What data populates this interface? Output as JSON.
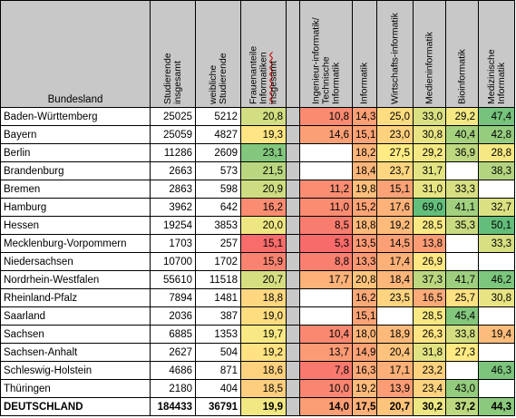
{
  "columns": [
    {
      "label": "Bundesland"
    },
    {
      "label": "Studierende\ninsgesamt"
    },
    {
      "label": "weibliche\nStudierende"
    },
    {
      "label": "Frauenanteile\nInformatiken\ninsgesamt"
    },
    {
      "label": ""
    },
    {
      "label": "Ingenieur-informatik/\nTechnische\nInformatik"
    },
    {
      "label": "Informatik"
    },
    {
      "label": "Wirtschafts-informatik"
    },
    {
      "label": "Medieninformatik"
    },
    {
      "label": "Bioinformatik"
    },
    {
      "label": "Medizinische\nInformatik"
    }
  ],
  "rows": [
    {
      "name": "Baden-Württemberg",
      "total": "25025",
      "female": "5212",
      "share": "20,8",
      "vals": [
        "10,8",
        "14,3",
        "25,0",
        "33,0",
        "29,2",
        "47,4"
      ]
    },
    {
      "name": "Bayern",
      "total": "25059",
      "female": "4827",
      "share": "19,3",
      "vals": [
        "14,6",
        "15,1",
        "23,0",
        "30,8",
        "40,4",
        "42,8"
      ]
    },
    {
      "name": "Berlin",
      "total": "11286",
      "female": "2609",
      "share": "23,1",
      "vals": [
        "",
        "18,2",
        "27,5",
        "29,2",
        "36,9",
        "28,8"
      ]
    },
    {
      "name": "Brandenburg",
      "total": "2663",
      "female": "573",
      "share": "21,5",
      "vals": [
        "",
        "18,4",
        "23,7",
        "31,7",
        "",
        "38,3"
      ]
    },
    {
      "name": "Bremen",
      "total": "2863",
      "female": "598",
      "share": "20,9",
      "vals": [
        "11,2",
        "19,8",
        "15,1",
        "31,0",
        "33,3",
        ""
      ]
    },
    {
      "name": "Hamburg",
      "total": "3962",
      "female": "642",
      "share": "16,2",
      "vals": [
        "11,0",
        "15,2",
        "17,6",
        "69,0",
        "41,1",
        "32,7"
      ]
    },
    {
      "name": "Hessen",
      "total": "19254",
      "female": "3853",
      "share": "20,0",
      "vals": [
        "8,5",
        "18,8",
        "19,2",
        "28,5",
        "35,3",
        "50,1"
      ]
    },
    {
      "name": "Mecklenburg-Vorpommern",
      "total": "1703",
      "female": "257",
      "share": "15,1",
      "vals": [
        "5,3",
        "13,5",
        "14,5",
        "13,8",
        "",
        "33,3"
      ]
    },
    {
      "name": "Niedersachsen",
      "total": "10700",
      "female": "1702",
      "share": "15,9",
      "vals": [
        "8,8",
        "13,3",
        "17,4",
        "26,9",
        "",
        ""
      ]
    },
    {
      "name": "Nordrhein-Westfalen",
      "total": "55610",
      "female": "11518",
      "share": "20,7",
      "vals": [
        "17,7",
        "20,8",
        "18,4",
        "37,3",
        "41,7",
        "46,2"
      ]
    },
    {
      "name": "Rheinland-Pfalz",
      "total": "7894",
      "female": "1481",
      "share": "18,8",
      "vals": [
        "",
        "16,2",
        "23,5",
        "16,5",
        "25,7",
        "30,8"
      ]
    },
    {
      "name": "Saarland",
      "total": "2036",
      "female": "387",
      "share": "19,0",
      "vals": [
        "",
        "15,1",
        "",
        "28,5",
        "45,4",
        ""
      ]
    },
    {
      "name": "Sachsen",
      "total": "6885",
      "female": "1353",
      "share": "19,7",
      "vals": [
        "10,4",
        "18,0",
        "18,9",
        "26,3",
        "33,8",
        "19,4"
      ]
    },
    {
      "name": "Sachsen-Anhalt",
      "total": "2627",
      "female": "504",
      "share": "19,2",
      "vals": [
        "13,7",
        "14,9",
        "20,4",
        "31,8",
        "27,3",
        ""
      ]
    },
    {
      "name": "Schleswig-Holstein",
      "total": "4686",
      "female": "871",
      "share": "18,6",
      "vals": [
        "7,8",
        "16,3",
        "17,1",
        "23,2",
        "",
        "46,3"
      ]
    },
    {
      "name": "Thüringen",
      "total": "2180",
      "female": "404",
      "share": "18,5",
      "vals": [
        "10,0",
        "19,2",
        "13,9",
        "23,4",
        "43,0",
        ""
      ]
    }
  ],
  "total_row": {
    "name": "DEUTSCHLAND",
    "total": "184433",
    "female": "36791",
    "share": "19,9",
    "vals": [
      "14,0",
      "17,5",
      "20,7",
      "30,2",
      "37,2",
      "44,3"
    ]
  },
  "colors": {
    "header_bg": "#c8c8c8",
    "low": "#f8696b",
    "mid": "#ffeb84",
    "high": "#63be7b"
  }
}
